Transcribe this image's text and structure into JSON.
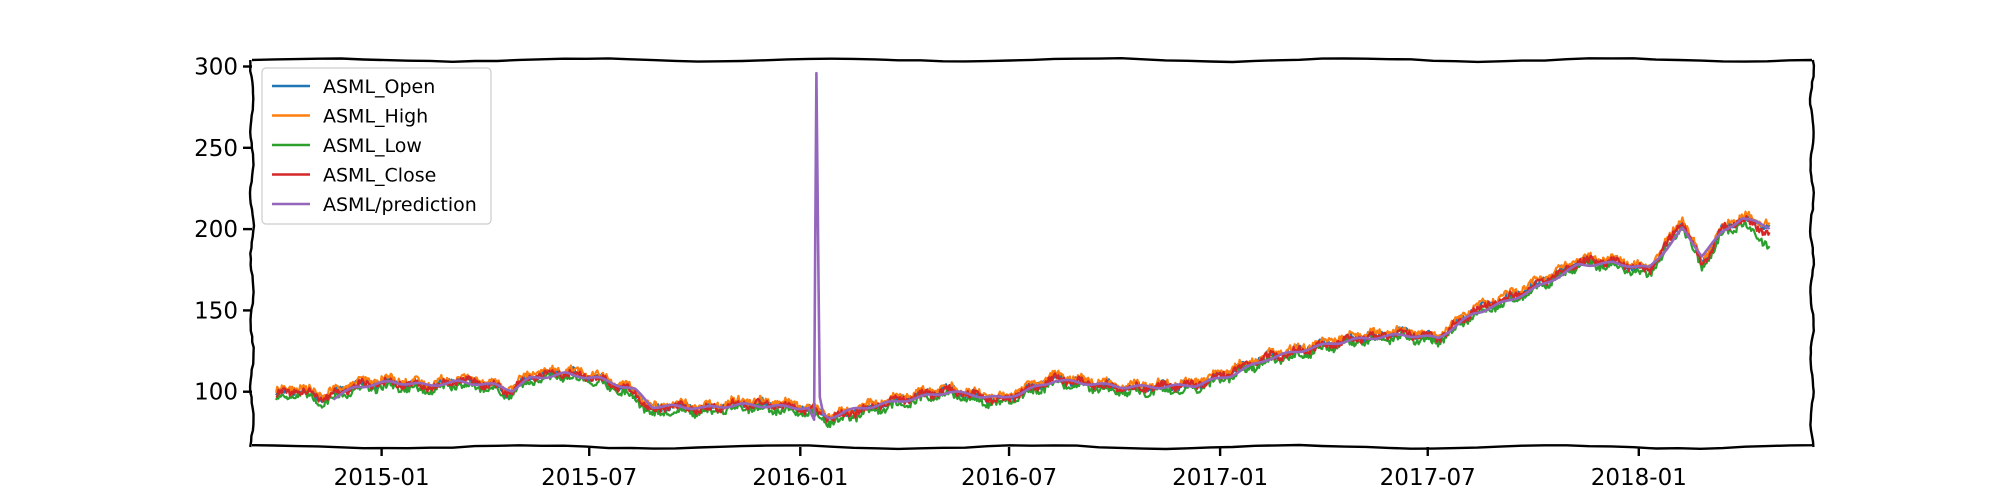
{
  "chart_data": {
    "type": "line",
    "title": "",
    "xlabel": "",
    "ylabel": "",
    "xlim": [
      "2014-09-10",
      "2018-06-01"
    ],
    "ylim": [
      66,
      304
    ],
    "grid": false,
    "legend_position": "top-left",
    "x_ticks": [
      {
        "value": "2015-01-01",
        "label": "2015-01"
      },
      {
        "value": "2015-07-01",
        "label": "2015-07"
      },
      {
        "value": "2016-01-01",
        "label": "2016-01"
      },
      {
        "value": "2016-07-01",
        "label": "2016-07"
      },
      {
        "value": "2017-01-01",
        "label": "2017-01"
      },
      {
        "value": "2017-07-01",
        "label": "2017-07"
      },
      {
        "value": "2018-01-01",
        "label": "2018-01"
      }
    ],
    "y_ticks": [
      {
        "value": 100,
        "label": "100"
      },
      {
        "value": 150,
        "label": "150"
      },
      {
        "value": 200,
        "label": "200"
      },
      {
        "value": 250,
        "label": "250"
      },
      {
        "value": 300,
        "label": "300"
      }
    ],
    "series": [
      {
        "name": "ASML_Open",
        "color": "#1f77b4",
        "offset": 0.5,
        "x": [
          "2014-10-01",
          "2014-10-20",
          "2014-11-10",
          "2014-12-10",
          "2015-01-10",
          "2015-02-10",
          "2015-03-10",
          "2015-04-10",
          "2015-04-20",
          "2015-05-10",
          "2015-06-10",
          "2015-07-10",
          "2015-08-10",
          "2015-08-25",
          "2015-09-10",
          "2015-10-10",
          "2015-11-10",
          "2015-12-10",
          "2016-01-10",
          "2016-01-26",
          "2016-02-10",
          "2016-03-10",
          "2016-04-10",
          "2016-05-10",
          "2016-06-10",
          "2016-06-25",
          "2016-07-10",
          "2016-08-10",
          "2016-09-10",
          "2016-10-10",
          "2016-11-10",
          "2016-12-10",
          "2017-01-10",
          "2017-02-10",
          "2017-03-10",
          "2017-04-10",
          "2017-05-10",
          "2017-06-10",
          "2017-07-10",
          "2017-08-10",
          "2017-09-10",
          "2017-10-10",
          "2017-11-10",
          "2017-12-10",
          "2018-01-10",
          "2018-01-25",
          "2018-02-08",
          "2018-02-25",
          "2018-03-15",
          "2018-04-01",
          "2018-04-25"
        ],
        "y": [
          98,
          101,
          96,
          104,
          106,
          103,
          107,
          104,
          99,
          109,
          112,
          108,
          99,
          88,
          91,
          89,
          93,
          92,
          89,
          84,
          86,
          92,
          97,
          101,
          96,
          95,
          99,
          108,
          105,
          102,
          103,
          104,
          112,
          121,
          125,
          130,
          134,
          136,
          133,
          150,
          158,
          168,
          180,
          180,
          174,
          190,
          205,
          178,
          200,
          206,
          202
        ]
      },
      {
        "name": "ASML_High",
        "color": "#ff7f0e",
        "offset": 2.0,
        "x": [
          "2014-10-01",
          "2014-10-20",
          "2014-11-10",
          "2014-12-10",
          "2015-01-10",
          "2015-02-10",
          "2015-03-10",
          "2015-04-10",
          "2015-04-20",
          "2015-05-10",
          "2015-06-10",
          "2015-07-10",
          "2015-08-10",
          "2015-08-25",
          "2015-09-10",
          "2015-10-10",
          "2015-11-10",
          "2015-12-10",
          "2016-01-10",
          "2016-01-26",
          "2016-02-10",
          "2016-03-10",
          "2016-04-10",
          "2016-05-10",
          "2016-06-10",
          "2016-06-25",
          "2016-07-10",
          "2016-08-10",
          "2016-09-10",
          "2016-10-10",
          "2016-11-10",
          "2016-12-10",
          "2017-01-10",
          "2017-02-10",
          "2017-03-10",
          "2017-04-10",
          "2017-05-10",
          "2017-06-10",
          "2017-07-10",
          "2017-08-10",
          "2017-09-10",
          "2017-10-10",
          "2017-11-10",
          "2017-12-10",
          "2018-01-10",
          "2018-01-25",
          "2018-02-08",
          "2018-02-25",
          "2018-03-15",
          "2018-04-01",
          "2018-04-25"
        ],
        "y": [
          98,
          101,
          96,
          104,
          106,
          103,
          107,
          104,
          99,
          109,
          112,
          108,
          99,
          88,
          91,
          89,
          93,
          92,
          89,
          84,
          86,
          92,
          97,
          101,
          96,
          95,
          99,
          108,
          105,
          102,
          103,
          104,
          112,
          121,
          125,
          130,
          134,
          136,
          133,
          150,
          158,
          168,
          180,
          180,
          174,
          190,
          205,
          178,
          200,
          206,
          202
        ]
      },
      {
        "name": "ASML_Low",
        "color": "#2ca02c",
        "offset": -2.5,
        "x": [
          "2014-10-01",
          "2014-10-20",
          "2014-11-10",
          "2014-12-10",
          "2015-01-10",
          "2015-02-10",
          "2015-03-10",
          "2015-04-10",
          "2015-04-20",
          "2015-05-10",
          "2015-06-10",
          "2015-07-10",
          "2015-08-10",
          "2015-08-25",
          "2015-09-10",
          "2015-10-10",
          "2015-11-10",
          "2015-12-10",
          "2016-01-10",
          "2016-01-26",
          "2016-02-10",
          "2016-03-10",
          "2016-04-10",
          "2016-05-10",
          "2016-06-10",
          "2016-06-25",
          "2016-07-10",
          "2016-08-10",
          "2016-09-10",
          "2016-10-10",
          "2016-11-10",
          "2016-12-10",
          "2017-01-10",
          "2017-02-10",
          "2017-03-10",
          "2017-04-10",
          "2017-05-10",
          "2017-06-10",
          "2017-07-10",
          "2017-08-10",
          "2017-09-10",
          "2017-10-10",
          "2017-11-10",
          "2017-12-10",
          "2018-01-10",
          "2018-01-25",
          "2018-02-08",
          "2018-02-25",
          "2018-03-15",
          "2018-04-01",
          "2018-04-25"
        ],
        "y": [
          98,
          101,
          96,
          104,
          106,
          103,
          107,
          104,
          99,
          109,
          112,
          108,
          99,
          88,
          91,
          89,
          93,
          92,
          89,
          84,
          86,
          92,
          97,
          101,
          96,
          95,
          99,
          108,
          105,
          102,
          103,
          104,
          112,
          121,
          125,
          130,
          134,
          136,
          133,
          150,
          158,
          168,
          180,
          180,
          174,
          190,
          205,
          178,
          200,
          206,
          192
        ]
      },
      {
        "name": "ASML_Close",
        "color": "#d62728",
        "offset": 0,
        "x": [
          "2014-10-01",
          "2014-10-20",
          "2014-11-10",
          "2014-12-10",
          "2015-01-10",
          "2015-02-10",
          "2015-03-10",
          "2015-04-10",
          "2015-04-20",
          "2015-05-10",
          "2015-06-10",
          "2015-07-10",
          "2015-08-10",
          "2015-08-25",
          "2015-09-10",
          "2015-10-10",
          "2015-11-10",
          "2015-12-10",
          "2016-01-10",
          "2016-01-26",
          "2016-02-10",
          "2016-03-10",
          "2016-04-10",
          "2016-05-10",
          "2016-06-10",
          "2016-06-25",
          "2016-07-10",
          "2016-08-10",
          "2016-09-10",
          "2016-10-10",
          "2016-11-10",
          "2016-12-10",
          "2017-01-10",
          "2017-02-10",
          "2017-03-10",
          "2017-04-10",
          "2017-05-10",
          "2017-06-10",
          "2017-07-10",
          "2017-08-10",
          "2017-09-10",
          "2017-10-10",
          "2017-11-10",
          "2017-12-10",
          "2018-01-10",
          "2018-01-25",
          "2018-02-08",
          "2018-02-25",
          "2018-03-15",
          "2018-04-01",
          "2018-04-25"
        ],
        "y": [
          98,
          101,
          96,
          104,
          106,
          103,
          107,
          104,
          99,
          109,
          112,
          108,
          99,
          88,
          91,
          89,
          93,
          92,
          89,
          84,
          86,
          92,
          97,
          101,
          96,
          95,
          99,
          108,
          105,
          102,
          103,
          104,
          112,
          121,
          125,
          130,
          134,
          136,
          133,
          150,
          158,
          168,
          180,
          180,
          174,
          190,
          205,
          178,
          200,
          206,
          198
        ]
      },
      {
        "name": "ASML/prediction",
        "color": "#9467bd",
        "offset": 0,
        "x": [
          "2014-11-20",
          "2014-12-10",
          "2015-01-10",
          "2015-02-10",
          "2015-03-10",
          "2015-04-10",
          "2015-04-25",
          "2015-05-10",
          "2015-06-10",
          "2015-07-10",
          "2015-08-10",
          "2015-08-25",
          "2015-09-10",
          "2015-10-10",
          "2015-11-10",
          "2015-12-10",
          "2016-01-08",
          "2016-01-13",
          "2016-01-15",
          "2016-01-18",
          "2016-01-21",
          "2016-01-26",
          "2016-02-10",
          "2016-03-10",
          "2016-04-10",
          "2016-05-10",
          "2016-06-10",
          "2016-06-25",
          "2016-07-10",
          "2016-08-10",
          "2016-09-10",
          "2016-10-10",
          "2016-11-10",
          "2016-12-10",
          "2017-01-10",
          "2017-02-10",
          "2017-03-10",
          "2017-04-10",
          "2017-05-10",
          "2017-06-10",
          "2017-07-10",
          "2017-08-10",
          "2017-09-10",
          "2017-10-10",
          "2017-11-10",
          "2017-12-10",
          "2018-01-10",
          "2018-01-25",
          "2018-02-08",
          "2018-02-25",
          "2018-03-15",
          "2018-04-01",
          "2018-04-25"
        ],
        "y": [
          96,
          103,
          106,
          104,
          106,
          104,
          101,
          108,
          111,
          108,
          101,
          91,
          91,
          90,
          92,
          91,
          90,
          82,
          295,
          96,
          86,
          84,
          88,
          92,
          96,
          100,
          97,
          96,
          99,
          107,
          105,
          103,
          103,
          104,
          110,
          120,
          125,
          130,
          133,
          135,
          133,
          148,
          156,
          166,
          178,
          179,
          176,
          188,
          200,
          184,
          198,
          207,
          201
        ]
      }
    ]
  }
}
